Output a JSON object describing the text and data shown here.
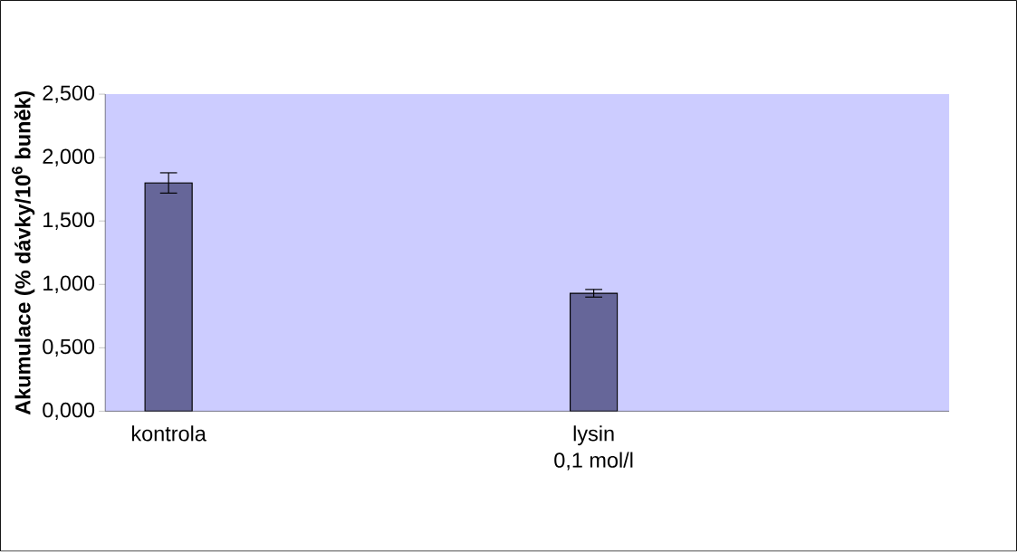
{
  "chart_data": {
    "type": "bar",
    "ylabel": "Akumulace (% dávky/10$^{6}$ buněk)",
    "categories": [
      "kontrola",
      "lysin\n0,1 mol/l"
    ],
    "values": [
      1.8,
      0.93
    ],
    "errors": [
      0.08,
      0.03
    ],
    "color": "#666699",
    "ylim": [
      0,
      2.5
    ],
    "yticks": [
      {
        "value": 0,
        "label": "0,000"
      },
      {
        "value": 0.5,
        "label": "0,500"
      },
      {
        "value": 1,
        "label": "1,000"
      },
      {
        "value": 1.5,
        "label": "1,500"
      },
      {
        "value": 2,
        "label": "2,000"
      },
      {
        "value": 2.5,
        "label": "2,500"
      }
    ],
    "grid": false
  }
}
